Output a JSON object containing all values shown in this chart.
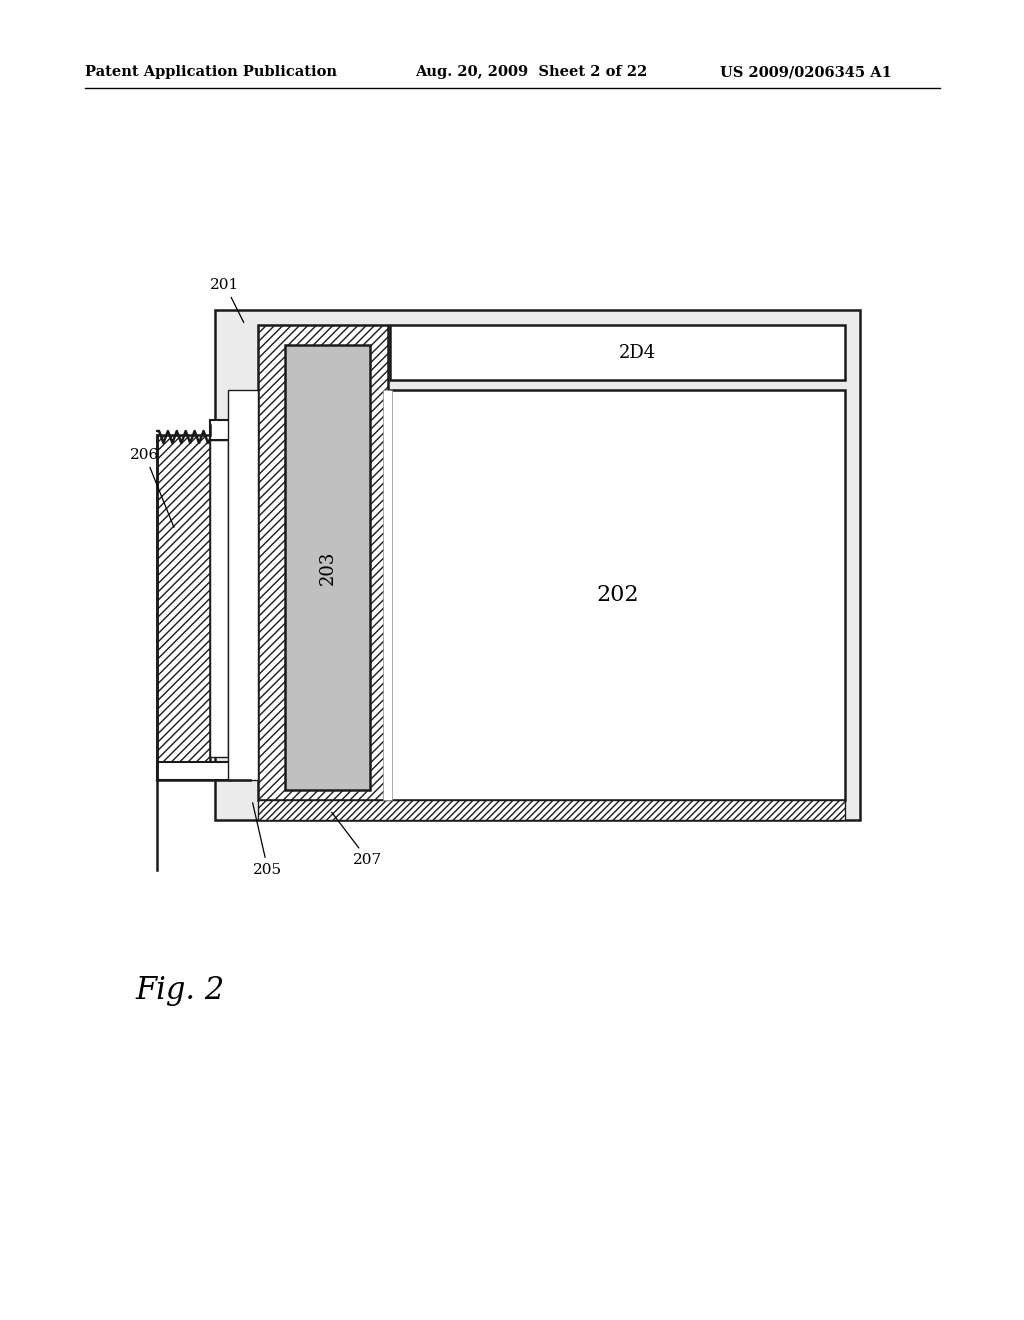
{
  "bg_color": "#ffffff",
  "header_left": "Patent Application Publication",
  "header_mid": "Aug. 20, 2009  Sheet 2 of 22",
  "header_right": "US 2009/0206345 A1",
  "fig_label": "Fig. 2",
  "line_color": "#1a1a1a",
  "hatch_color": "#1a1a1a",
  "gray_fill": "#c8c8c8",
  "outer_fill": "#e8e8e8",
  "white": "#ffffff"
}
